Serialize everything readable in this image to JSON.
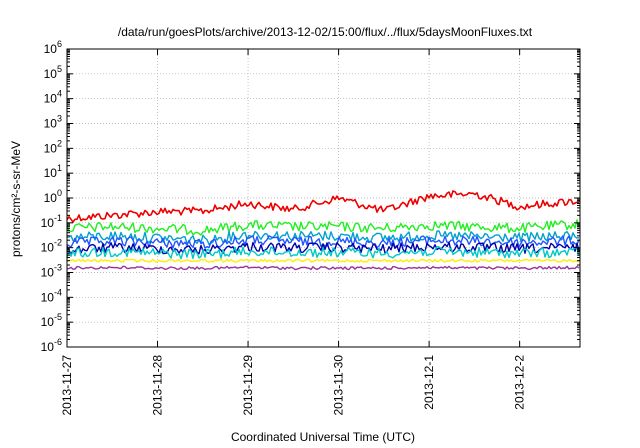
{
  "chart_data": {
    "type": "line",
    "title": "/data/run/goesPlots/archive/2013-12-02/15:00/flux/../flux/5daysMoonFluxes.txt",
    "xlabel": "Coordinated Universal Time (UTC)",
    "ylabel": "protons/cm²-s-sr-MeV",
    "y_scale": "log",
    "ylim": [
      1e-06,
      1000000.0
    ],
    "y_ticks": [
      {
        "value": 1e-06,
        "base": "10",
        "exp": "-6"
      },
      {
        "value": 1e-05,
        "base": "10",
        "exp": "-5"
      },
      {
        "value": 0.0001,
        "base": "10",
        "exp": "-4"
      },
      {
        "value": 0.001,
        "base": "10",
        "exp": "-3"
      },
      {
        "value": 0.01,
        "base": "10",
        "exp": "-2"
      },
      {
        "value": 0.1,
        "base": "10",
        "exp": "-1"
      },
      {
        "value": 1.0,
        "base": "10",
        "exp": "0"
      },
      {
        "value": 10.0,
        "base": "10",
        "exp": "1"
      },
      {
        "value": 100.0,
        "base": "10",
        "exp": "2"
      },
      {
        "value": 1000.0,
        "base": "10",
        "exp": "3"
      },
      {
        "value": 10000.0,
        "base": "10",
        "exp": "4"
      },
      {
        "value": 100000.0,
        "base": "10",
        "exp": "5"
      },
      {
        "value": 1000000.0,
        "base": "10",
        "exp": "6"
      }
    ],
    "xlim": [
      "2013-11-27T00:00",
      "2013-12-02T16:00"
    ],
    "x_ticks": [
      {
        "value": "2013-11-27T00:00",
        "label": "2013-11-27"
      },
      {
        "value": "2013-11-28T00:00",
        "label": "2013-11-28"
      },
      {
        "value": "2013-11-29T00:00",
        "label": "2013-11-29"
      },
      {
        "value": "2013-11-30T00:00",
        "label": "2013-11-30"
      },
      {
        "value": "2013-12-01T00:00",
        "label": "2013-12-1"
      },
      {
        "value": "2013-12-02T00:00",
        "label": "2013-12-2"
      }
    ],
    "grid": true,
    "legend": "none",
    "series": [
      {
        "color": "#ee0000",
        "x": [
          "2013-11-27T00:00",
          "2013-11-27T12:00",
          "2013-11-28T00:00",
          "2013-11-28T12:00",
          "2013-11-29T00:00",
          "2013-11-29T12:00",
          "2013-11-30T00:00",
          "2013-11-30T12:00",
          "2013-12-01T00:00",
          "2013-12-01T12:00",
          "2013-12-02T00:00",
          "2013-12-02T16:00"
        ],
        "values": [
          0.15,
          0.2,
          0.28,
          0.3,
          0.6,
          0.35,
          1.0,
          0.3,
          1.2,
          1.5,
          0.45,
          0.8
        ]
      },
      {
        "color": "#22ee22",
        "x": [
          "2013-11-27T00:00",
          "2013-11-27T12:00",
          "2013-11-28T00:00",
          "2013-11-28T12:00",
          "2013-11-29T00:00",
          "2013-11-29T12:00",
          "2013-11-30T00:00",
          "2013-11-30T12:00",
          "2013-12-01T00:00",
          "2013-12-01T12:00",
          "2013-12-02T00:00",
          "2013-12-02T16:00"
        ],
        "values": [
          0.06,
          0.07,
          0.06,
          0.05,
          0.08,
          0.07,
          0.07,
          0.06,
          0.08,
          0.07,
          0.06,
          0.09
        ]
      },
      {
        "color": "#00a0d0",
        "x": [
          "2013-11-27T00:00",
          "2013-11-27T12:00",
          "2013-11-28T00:00",
          "2013-11-28T12:00",
          "2013-11-29T00:00",
          "2013-11-29T12:00",
          "2013-11-30T00:00",
          "2013-11-30T12:00",
          "2013-12-01T00:00",
          "2013-12-01T12:00",
          "2013-12-02T00:00",
          "2013-12-02T16:00"
        ],
        "values": [
          0.025,
          0.03,
          0.025,
          0.02,
          0.035,
          0.03,
          0.03,
          0.025,
          0.03,
          0.028,
          0.025,
          0.03
        ]
      },
      {
        "color": "#2255ff",
        "x": [
          "2013-11-27T00:00",
          "2013-11-27T12:00",
          "2013-11-28T00:00",
          "2013-11-28T12:00",
          "2013-11-29T00:00",
          "2013-11-29T12:00",
          "2013-11-30T00:00",
          "2013-11-30T12:00",
          "2013-12-01T00:00",
          "2013-12-01T12:00",
          "2013-12-02T00:00",
          "2013-12-02T16:00"
        ],
        "values": [
          0.015,
          0.018,
          0.016,
          0.014,
          0.02,
          0.018,
          0.018,
          0.015,
          0.02,
          0.018,
          0.016,
          0.02
        ]
      },
      {
        "color": "#0000aa",
        "x": [
          "2013-11-27T00:00",
          "2013-11-27T12:00",
          "2013-11-28T00:00",
          "2013-11-28T12:00",
          "2013-11-29T00:00",
          "2013-11-29T12:00",
          "2013-11-30T00:00",
          "2013-11-30T12:00",
          "2013-12-01T00:00",
          "2013-12-01T12:00",
          "2013-12-02T00:00",
          "2013-12-02T16:00"
        ],
        "values": [
          0.008,
          0.01,
          0.009,
          0.008,
          0.011,
          0.01,
          0.01,
          0.009,
          0.011,
          0.01,
          0.009,
          0.01
        ]
      },
      {
        "color": "#00c8c8",
        "x": [
          "2013-11-27T00:00",
          "2013-11-27T12:00",
          "2013-11-28T00:00",
          "2013-11-28T12:00",
          "2013-11-29T00:00",
          "2013-11-29T12:00",
          "2013-11-30T00:00",
          "2013-11-30T12:00",
          "2013-12-01T00:00",
          "2013-12-01T12:00",
          "2013-12-02T00:00",
          "2013-12-02T16:00"
        ],
        "values": [
          0.006,
          0.007,
          0.006,
          0.0055,
          0.007,
          0.0065,
          0.0065,
          0.006,
          0.007,
          0.0065,
          0.006,
          0.0065
        ]
      },
      {
        "color": "#ffee00",
        "x": [
          "2013-11-27T00:00",
          "2013-11-27T12:00",
          "2013-11-28T00:00",
          "2013-11-28T12:00",
          "2013-11-29T00:00",
          "2013-11-29T12:00",
          "2013-11-30T00:00",
          "2013-11-30T12:00",
          "2013-12-01T00:00",
          "2013-12-01T12:00",
          "2013-12-02T00:00",
          "2013-12-02T16:00"
        ],
        "values": [
          0.003,
          0.003,
          0.003,
          0.003,
          0.003,
          0.003,
          0.003,
          0.003,
          0.003,
          0.003,
          0.003,
          0.003
        ]
      },
      {
        "color": "#993399",
        "x": [
          "2013-11-27T00:00",
          "2013-11-27T12:00",
          "2013-11-28T00:00",
          "2013-11-28T12:00",
          "2013-11-29T00:00",
          "2013-11-29T12:00",
          "2013-11-30T00:00",
          "2013-11-30T12:00",
          "2013-12-01T00:00",
          "2013-12-01T12:00",
          "2013-12-02T00:00",
          "2013-12-02T16:00"
        ],
        "values": [
          0.0015,
          0.0016,
          0.0015,
          0.0015,
          0.0016,
          0.0015,
          0.0015,
          0.0015,
          0.0016,
          0.0015,
          0.0015,
          0.0016
        ]
      }
    ]
  }
}
